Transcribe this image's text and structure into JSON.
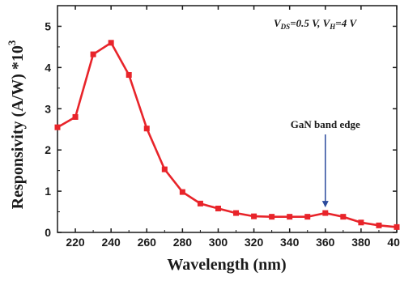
{
  "chart_data": {
    "type": "line",
    "xlabel": "Wavelength (nm)",
    "ylabel": {
      "main": "Responsivity (A/W) *10",
      "superscript": "3"
    },
    "xlim": [
      210,
      400
    ],
    "ylim": [
      0,
      5.5
    ],
    "xticks": [
      220,
      240,
      260,
      280,
      300,
      320,
      340,
      360,
      380,
      400
    ],
    "yticks": [
      0,
      1,
      2,
      3,
      4,
      5
    ],
    "grid": false,
    "series_color": "#e8242a",
    "annotation_color": "#2b4a9c",
    "series": [
      {
        "x": [
          210,
          220,
          230,
          240,
          250,
          260,
          270,
          280,
          290,
          300,
          310,
          320,
          330,
          340,
          350,
          360,
          370,
          380,
          390,
          400
        ],
        "values": [
          2.55,
          2.8,
          4.32,
          4.6,
          3.82,
          2.52,
          1.53,
          0.98,
          0.7,
          0.58,
          0.47,
          0.39,
          0.38,
          0.38,
          0.38,
          0.47,
          0.38,
          0.24,
          0.17,
          0.13
        ]
      }
    ],
    "annotations": [
      {
        "text": "GaN band edge",
        "x": 360,
        "y": 0.47
      }
    ],
    "condition": {
      "v1_main": "V",
      "v1_sub": "DS",
      "v1_rest": "=0.5 V, ",
      "v2_main": "V",
      "v2_sub": "H",
      "v2_rest": "=4 V"
    }
  }
}
